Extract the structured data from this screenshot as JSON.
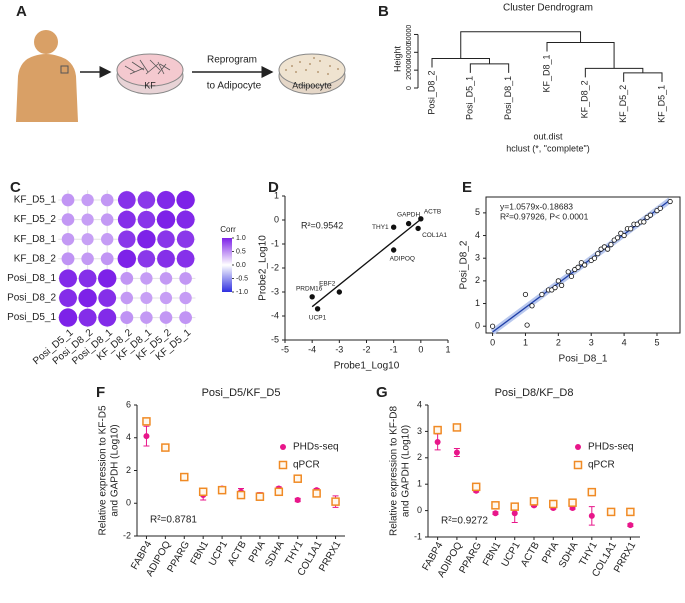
{
  "panel_a": {
    "label": "A",
    "dish_left": "KF",
    "step_top": "Reprogram",
    "step_bottom": "to Adipocyte",
    "dish_right": "Adipocyte"
  },
  "chart_data": [
    {
      "type": "dendrogram",
      "label": "B",
      "title": "Cluster Dendrogram",
      "ylabel": "Height",
      "leaves": [
        "Posi_D8_2",
        "Posi_D5_1",
        "Posi_D8_1",
        "KF_D8_1",
        "KF_D8_2",
        "KF_D5_2",
        "KF_D5_1"
      ],
      "merges": [
        [
          1,
          2
        ],
        [
          0,
          7
        ],
        [
          5,
          6
        ],
        [
          4,
          9
        ],
        [
          3,
          10
        ],
        [
          8,
          11
        ]
      ],
      "heights": [
        27000,
        33000,
        17000,
        22000,
        51000,
        63000
      ],
      "ylim": [
        0,
        65000
      ],
      "yticks": [
        0,
        20000,
        40000,
        60000
      ],
      "xlabel": "out.dist",
      "subtitle": "hclust (*, \"complete\")"
    },
    {
      "type": "corrplot",
      "label": "C",
      "rows": [
        "KF_D5_1",
        "KF_D5_2",
        "KF_D8_1",
        "KF_D8_2",
        "Posi_D8_1",
        "Posi_D8_2",
        "Posi_D5_1"
      ],
      "columns": [
        "Posi_D5_1",
        "Posi_D8_2",
        "Posi_D8_1",
        "KF_D8_2",
        "KF_D8_1",
        "KF_D5_2",
        "KF_D5_1"
      ],
      "values": [
        [
          0.48,
          0.45,
          0.47,
          0.93,
          0.9,
          0.97,
          1
        ],
        [
          0.47,
          0.44,
          0.46,
          0.94,
          0.91,
          1,
          0.97
        ],
        [
          0.46,
          0.43,
          0.45,
          0.9,
          1,
          0.91,
          0.9
        ],
        [
          0.49,
          0.46,
          0.48,
          1,
          0.9,
          0.94,
          0.93
        ],
        [
          0.96,
          0.94,
          1,
          0.48,
          0.45,
          0.46,
          0.47
        ],
        [
          0.95,
          1,
          0.94,
          0.46,
          0.43,
          0.44,
          0.45
        ],
        [
          1,
          0.95,
          0.96,
          0.49,
          0.46,
          0.47,
          0.48
        ]
      ],
      "legend_title": "Corr",
      "clim": [
        -1,
        1
      ],
      "colorbar_ticks": [
        {
          "value": 1,
          "label": "1.0"
        },
        0.5,
        {
          "value": 0,
          "label": "0.0"
        },
        -0.5,
        {
          "value": -1,
          "label": "-1.0"
        }
      ],
      "color_high": "#7d22e8",
      "color_low": "#2f2fe0"
    },
    {
      "type": "scatter",
      "label": "D",
      "xlabel": "Probe1_Log10",
      "ylabel": "Probe2_Log10",
      "annotation": [
        "R²=0.9542"
      ],
      "x": [
        0,
        -0.45,
        -1,
        -0.1,
        -1,
        -3,
        -4,
        -3.8
      ],
      "values": [
        0.05,
        -0.15,
        -0.3,
        -0.35,
        -1.25,
        -3,
        -3.2,
        -3.7
      ],
      "point_labels": [
        "ACTB",
        "GAPDH",
        "THY1",
        "COL1A1",
        "ADIPOQ",
        "EBF2",
        "PRDM16",
        "UCP1"
      ],
      "xlim": [
        -5,
        1
      ],
      "ylim": [
        -5,
        1
      ],
      "xticks": [
        -5,
        -4,
        -3,
        -2,
        -1,
        0,
        1
      ],
      "yticks": [
        -5,
        -4,
        -3,
        -2,
        -1,
        0,
        1
      ],
      "color": "#111111",
      "label_color": "#b22222",
      "marker": "filled",
      "line_color": "#111111"
    },
    {
      "type": "scatter",
      "label": "E",
      "xlabel": "Posi_D8_1",
      "ylabel": "Posi_D8_2",
      "annotation": [
        "y=1.0579x-0.18683",
        "R²=0.97926, P< 0.0001"
      ],
      "x": [
        0,
        1,
        1.05,
        1.2,
        1.5,
        1.7,
        1.8,
        1.9,
        2.0,
        2.1,
        2.3,
        2.4,
        2.5,
        2.6,
        2.7,
        2.8,
        3.0,
        3.1,
        3.2,
        3.3,
        3.4,
        3.5,
        3.6,
        3.7,
        3.8,
        3.9,
        4.0,
        4.1,
        4.2,
        4.3,
        4.4,
        4.5,
        4.6,
        4.7,
        4.8,
        5.0,
        5.1,
        5.4
      ],
      "values": [
        0,
        1.4,
        0.05,
        0.9,
        1.4,
        1.6,
        1.6,
        1.7,
        2.0,
        1.8,
        2.4,
        2.2,
        2.5,
        2.6,
        2.8,
        2.7,
        2.9,
        3.0,
        3.2,
        3.4,
        3.5,
        3.4,
        3.6,
        3.8,
        3.9,
        4.1,
        4.0,
        4.3,
        4.3,
        4.5,
        4.5,
        4.6,
        4.6,
        4.8,
        4.9,
        5.1,
        5.2,
        5.5
      ],
      "xlim": [
        -0.2,
        5.7
      ],
      "ylim": [
        -0.3,
        5.7
      ],
      "xticks": [
        0,
        1,
        2,
        3,
        4,
        5
      ],
      "yticks": [
        0,
        1,
        2,
        3,
        4,
        5
      ],
      "color": "#111111",
      "marker": "open",
      "line_color": "#1f3fa8",
      "band_color": "#b9c8ee"
    },
    {
      "type": "dotplot",
      "label": "F",
      "title": "Posi_D5/KF_D5",
      "ylabel": [
        "Relative expression to KF-D5",
        "and GAPDH (Log10)"
      ],
      "annotation": "R²=0.8781",
      "categories": [
        "FABP4",
        "ADIPOQ",
        "PPARG",
        "FBN1",
        "UCP1",
        "ACTB",
        "PPIA",
        "SDHA",
        "THY1",
        "COL1A1",
        "PRRX1"
      ],
      "series": [
        {
          "name": "PHDs-seq",
          "color": "#e8168a",
          "marker": "circle",
          "values": [
            4.1,
            3.4,
            1.6,
            0.5,
            0.9,
            0.7,
            0.5,
            0.9,
            0.2,
            0.8,
            0.1
          ],
          "errors": [
            0.6,
            0.1,
            0.1,
            0.3,
            0.1,
            0.2,
            0.15,
            0.1,
            0.1,
            0.1,
            0.35
          ]
        },
        {
          "name": "qPCR",
          "color": "#f08a24",
          "marker": "square",
          "values": [
            5.0,
            3.4,
            1.6,
            0.7,
            0.8,
            0.5,
            0.4,
            0.7,
            1.5,
            0.6,
            0.1
          ]
        }
      ],
      "ylim": [
        -2,
        6
      ],
      "yticks": [
        -2,
        0,
        2,
        4,
        6
      ]
    },
    {
      "type": "dotplot",
      "label": "G",
      "title": "Posi_D8/KF_D8",
      "ylabel": [
        "Relative expression to KF-D8",
        "and GAPDH (Log10)"
      ],
      "annotation": "R²=0.9272",
      "categories": [
        "FABP4",
        "ADIPOQ",
        "PPARG",
        "FBN1",
        "UCP1",
        "ACTB",
        "PPIA",
        "SDHA",
        "THY1",
        "COL1A1",
        "PRRX1"
      ],
      "series": [
        {
          "name": "PHDs-seq",
          "color": "#e8168a",
          "marker": "circle",
          "values": [
            2.6,
            2.2,
            0.75,
            -0.1,
            -0.1,
            0.2,
            0.1,
            0.1,
            -0.2,
            -0.05,
            -0.55
          ],
          "errors": [
            0.3,
            0.15,
            0.05,
            0.05,
            0.35,
            0.05,
            0.05,
            0.05,
            0.35,
            0.05,
            0.05
          ]
        },
        {
          "name": "qPCR",
          "color": "#f08a24",
          "marker": "square",
          "values": [
            3.05,
            3.15,
            0.9,
            0.2,
            0.15,
            0.35,
            0.25,
            0.3,
            0.7,
            -0.05,
            -0.05
          ]
        }
      ],
      "ylim": [
        -1,
        4
      ],
      "yticks": [
        -1,
        0,
        1,
        2,
        3,
        4
      ]
    }
  ]
}
